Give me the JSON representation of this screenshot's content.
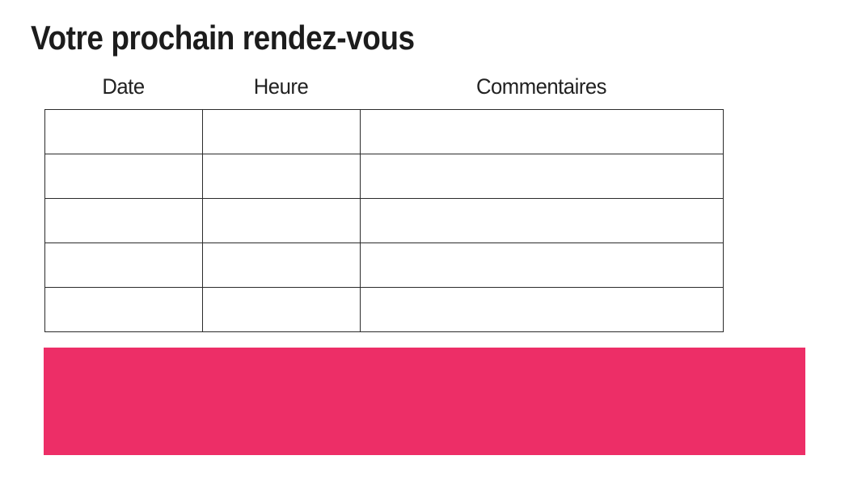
{
  "page": {
    "title": "Votre prochain rendez-vous"
  },
  "table": {
    "columns": [
      {
        "key": "date",
        "label": "Date"
      },
      {
        "key": "heure",
        "label": "Heure"
      },
      {
        "key": "commentaires",
        "label": "Commentaires"
      }
    ],
    "rows": [
      {
        "date": "",
        "heure": "",
        "commentaires": ""
      },
      {
        "date": "",
        "heure": "",
        "commentaires": ""
      },
      {
        "date": "",
        "heure": "",
        "commentaires": ""
      },
      {
        "date": "",
        "heure": "",
        "commentaires": ""
      },
      {
        "date": "",
        "heure": "",
        "commentaires": ""
      }
    ]
  },
  "colors": {
    "accent_pink": "#ED2E67",
    "table_border": "#2B2B2B",
    "text": "#1C1C1C",
    "background": "#FFFFFF"
  }
}
